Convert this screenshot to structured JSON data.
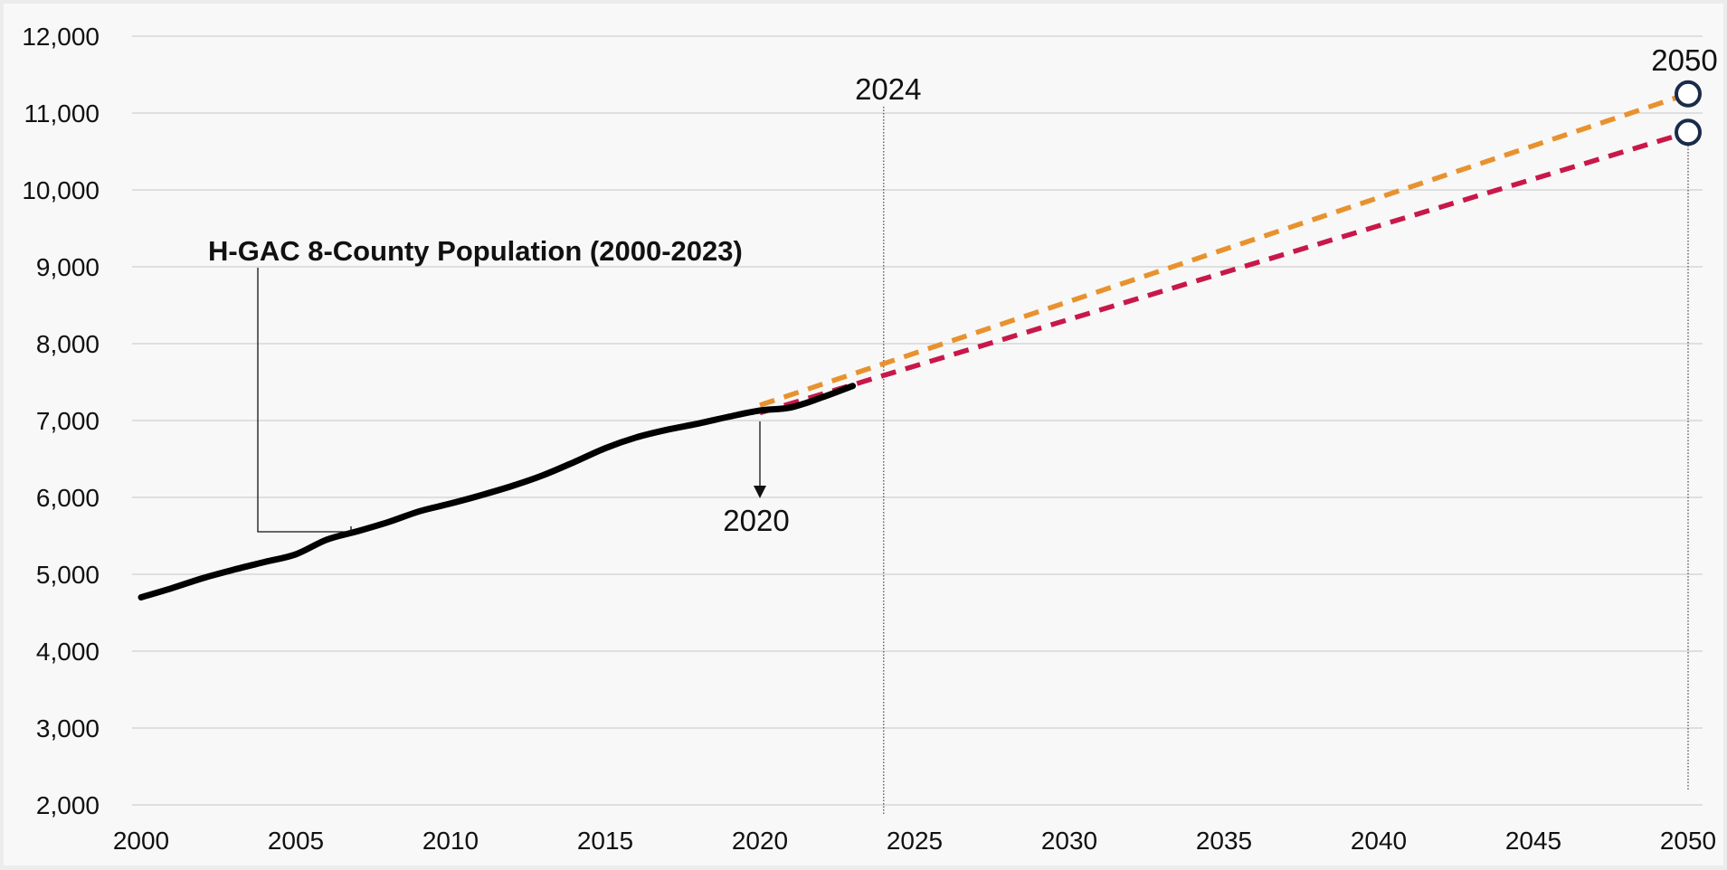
{
  "chart_data": {
    "type": "line",
    "title": "",
    "xlabel": "",
    "ylabel": "",
    "xlim": [
      2000,
      2050
    ],
    "ylim": [
      2000,
      12000
    ],
    "xticks": [
      "2000",
      "2005",
      "2010",
      "2015",
      "2020",
      "2025",
      "2030",
      "2035",
      "2040",
      "2045",
      "2050"
    ],
    "yticks": [
      "2,000",
      "3,000",
      "4,000",
      "5,000",
      "6,000",
      "7,000",
      "8,000",
      "9,000",
      "10,000",
      "11,000",
      "12,000"
    ],
    "grid": true,
    "series": [
      {
        "name": "",
        "style": "solid",
        "color": "#000000",
        "x": [
          2000,
          2001,
          2002,
          2003,
          2004,
          2005,
          2006,
          2007,
          2008,
          2009,
          2010,
          2011,
          2012,
          2013,
          2014,
          2015,
          2016,
          2017,
          2018,
          2019,
          2020,
          2021,
          2022,
          2023
        ],
        "y": [
          4700,
          4820,
          4950,
          5060,
          5160,
          5260,
          5450,
          5560,
          5680,
          5820,
          5920,
          6030,
          6150,
          6290,
          6460,
          6640,
          6780,
          6880,
          6960,
          7050,
          7130,
          7170,
          7300,
          7450
        ]
      },
      {
        "name": "",
        "style": "dashed",
        "color": "#e8922e",
        "x": [
          2020,
          2050
        ],
        "y": [
          7200,
          11250
        ]
      },
      {
        "name": "",
        "style": "dashed",
        "color": "#c8184a",
        "x": [
          2020,
          2050
        ],
        "y": [
          7100,
          10750
        ]
      }
    ],
    "end_markers": [
      {
        "x": 2050,
        "y": 11250,
        "color": "#1a2b4a"
      },
      {
        "x": 2050,
        "y": 10750,
        "color": "#1a2b4a"
      }
    ],
    "annotations": {
      "series_label": "H-GAC 8-County Population (2000-2023)",
      "label_2020": "2020",
      "label_2024": "2024",
      "label_2050": "2050"
    }
  }
}
